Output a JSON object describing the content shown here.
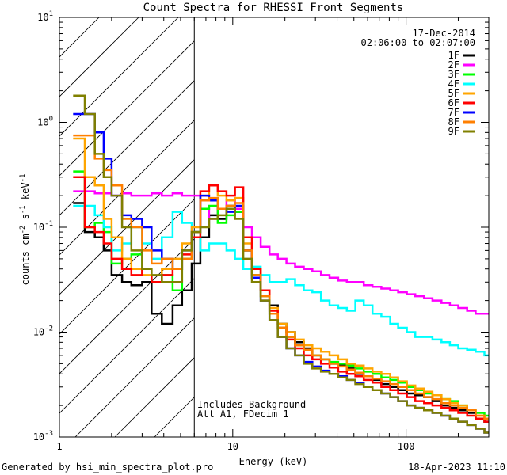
{
  "chart_data": {
    "type": "line",
    "title": "Count Spectra for RHESSI Front Segments",
    "xlabel": "Energy (keV)",
    "ylabel": "counts cm",
    "ylabel_sup1": "-2",
    "ylabel_mid": " s",
    "ylabel_sup2": "-1",
    "ylabel_end": " keV",
    "ylabel_sup3": "-1",
    "xscale": "log",
    "yscale": "log",
    "xlim": [
      1,
      300
    ],
    "ylim": [
      0.001,
      10
    ],
    "x_tick_labels": [
      {
        "value": 1,
        "label": "1"
      },
      {
        "value": 10,
        "label": "10"
      },
      {
        "value": 100,
        "label": "100"
      }
    ],
    "y_tick_labels": [
      {
        "value": 0.001,
        "base": "10",
        "exp": "-3"
      },
      {
        "value": 0.01,
        "base": "10",
        "exp": "-2"
      },
      {
        "value": 0.1,
        "base": "10",
        "exp": "-1"
      },
      {
        "value": 1,
        "base": "10",
        "exp": "0"
      },
      {
        "value": 10,
        "base": "10",
        "exp": "1"
      }
    ],
    "date": "17-Dec-2014",
    "time_range": "02:06:00 to 02:07:00",
    "shaded_region_upper_energy": 6,
    "annotations": [
      "Includes Background",
      "Att A1, FDecim 1"
    ],
    "series": [
      {
        "name": "1F",
        "color": "#000000",
        "x": [
          1.2,
          1.4,
          1.6,
          1.8,
          2.0,
          2.3,
          2.6,
          3.0,
          3.4,
          3.9,
          4.5,
          5.1,
          5.8,
          6.5,
          7.3,
          8.2,
          9.2,
          10.3,
          11.5,
          12.9,
          14.5,
          16.3,
          18.2,
          20.4,
          22.9,
          25.7,
          28.8,
          32.3,
          36.2,
          40.6,
          45.5,
          51,
          57,
          64,
          72,
          81,
          90,
          101,
          113,
          127,
          142,
          160,
          179,
          200,
          225,
          252,
          283
        ],
        "y": [
          0.17,
          0.09,
          0.08,
          0.06,
          0.035,
          0.03,
          0.028,
          0.03,
          0.015,
          0.012,
          0.018,
          0.025,
          0.045,
          0.08,
          0.13,
          0.12,
          0.16,
          0.14,
          0.06,
          0.035,
          0.025,
          0.018,
          0.012,
          0.01,
          0.008,
          0.007,
          0.006,
          0.0055,
          0.005,
          0.0048,
          0.0045,
          0.004,
          0.0038,
          0.0035,
          0.0032,
          0.003,
          0.0028,
          0.0026,
          0.0025,
          0.0024,
          0.0022,
          0.002,
          0.0019,
          0.0018,
          0.0017,
          0.0015,
          0.0014
        ]
      },
      {
        "name": "2F",
        "color": "#ff00ff",
        "x": [
          1.2,
          1.4,
          1.6,
          1.8,
          2.0,
          2.3,
          2.6,
          3.0,
          3.4,
          3.9,
          4.5,
          5.1,
          5.8,
          6.5,
          7.3,
          8.2,
          9.2,
          10.3,
          11.5,
          12.9,
          14.5,
          16.3,
          18.2,
          20.4,
          22.9,
          25.7,
          28.8,
          32.3,
          36.2,
          40.6,
          45.5,
          51,
          57,
          64,
          72,
          81,
          90,
          101,
          113,
          127,
          142,
          160,
          179,
          200,
          225,
          252,
          283
        ],
        "y": [
          0.22,
          0.22,
          0.21,
          0.21,
          0.2,
          0.21,
          0.2,
          0.2,
          0.21,
          0.2,
          0.21,
          0.2,
          0.2,
          0.15,
          0.12,
          0.15,
          0.18,
          0.15,
          0.1,
          0.08,
          0.065,
          0.055,
          0.05,
          0.045,
          0.042,
          0.04,
          0.038,
          0.035,
          0.033,
          0.031,
          0.03,
          0.03,
          0.028,
          0.027,
          0.026,
          0.025,
          0.024,
          0.023,
          0.022,
          0.021,
          0.02,
          0.019,
          0.018,
          0.017,
          0.016,
          0.015,
          0.015
        ]
      },
      {
        "name": "3F",
        "color": "#00ff00",
        "x": [
          1.2,
          1.4,
          1.6,
          1.8,
          2.0,
          2.3,
          2.6,
          3.0,
          3.4,
          3.9,
          4.5,
          5.1,
          5.8,
          6.5,
          7.3,
          8.2,
          9.2,
          10.3,
          11.5,
          12.9,
          14.5,
          16.3,
          18.2,
          20.4,
          22.9,
          25.7,
          28.8,
          32.3,
          36.2,
          40.6,
          45.5,
          51,
          57,
          64,
          72,
          81,
          90,
          101,
          113,
          127,
          142,
          160,
          179,
          200,
          225,
          252,
          283
        ],
        "y": [
          0.34,
          0.1,
          0.11,
          0.09,
          0.045,
          0.05,
          0.055,
          0.04,
          0.03,
          0.035,
          0.025,
          0.05,
          0.09,
          0.15,
          0.16,
          0.11,
          0.13,
          0.14,
          0.06,
          0.035,
          0.022,
          0.015,
          0.011,
          0.009,
          0.0075,
          0.0068,
          0.006,
          0.0055,
          0.0052,
          0.005,
          0.0048,
          0.0045,
          0.0042,
          0.004,
          0.0037,
          0.0035,
          0.0033,
          0.003,
          0.0028,
          0.0026,
          0.0025,
          0.0023,
          0.0022,
          0.002,
          0.0018,
          0.0017,
          0.0016
        ]
      },
      {
        "name": "4F",
        "color": "#00ffff",
        "x": [
          1.2,
          1.4,
          1.6,
          1.8,
          2.0,
          2.3,
          2.6,
          3.0,
          3.4,
          3.9,
          4.5,
          5.1,
          5.8,
          6.5,
          7.3,
          8.2,
          9.2,
          10.3,
          11.5,
          12.9,
          14.5,
          16.3,
          18.2,
          20.4,
          22.9,
          25.7,
          28.8,
          32.3,
          36.2,
          40.6,
          45.5,
          51,
          57,
          64,
          72,
          81,
          90,
          101,
          113,
          127,
          142,
          160,
          179,
          200,
          225,
          252,
          283
        ],
        "y": [
          0.16,
          0.16,
          0.13,
          0.1,
          0.06,
          0.07,
          0.1,
          0.07,
          0.05,
          0.08,
          0.14,
          0.11,
          0.09,
          0.06,
          0.07,
          0.07,
          0.06,
          0.05,
          0.04,
          0.042,
          0.035,
          0.03,
          0.03,
          0.032,
          0.028,
          0.025,
          0.024,
          0.02,
          0.018,
          0.017,
          0.016,
          0.02,
          0.018,
          0.015,
          0.014,
          0.012,
          0.011,
          0.01,
          0.009,
          0.009,
          0.0085,
          0.008,
          0.0075,
          0.007,
          0.0068,
          0.0065,
          0.006
        ]
      },
      {
        "name": "5F",
        "color": "#ffa500",
        "x": [
          1.2,
          1.4,
          1.6,
          1.8,
          2.0,
          2.3,
          2.6,
          3.0,
          3.4,
          3.9,
          4.5,
          5.1,
          5.8,
          6.5,
          7.3,
          8.2,
          9.2,
          10.3,
          11.5,
          12.9,
          14.5,
          16.3,
          18.2,
          20.4,
          22.9,
          25.7,
          28.8,
          32.3,
          36.2,
          40.6,
          45.5,
          51,
          57,
          64,
          72,
          81,
          90,
          101,
          113,
          127,
          142,
          160,
          179,
          200,
          225,
          252,
          283
        ],
        "y": [
          0.7,
          0.3,
          0.25,
          0.12,
          0.08,
          0.05,
          0.04,
          0.035,
          0.03,
          0.04,
          0.05,
          0.07,
          0.1,
          0.2,
          0.25,
          0.2,
          0.18,
          0.19,
          0.07,
          0.04,
          0.025,
          0.017,
          0.012,
          0.01,
          0.0085,
          0.0075,
          0.007,
          0.0065,
          0.006,
          0.0055,
          0.005,
          0.0048,
          0.0045,
          0.0042,
          0.004,
          0.0037,
          0.0034,
          0.0031,
          0.0029,
          0.0027,
          0.0025,
          0.0023,
          0.0021,
          0.002,
          0.0018,
          0.0016,
          0.0015
        ]
      },
      {
        "name": "6F",
        "color": "#ff0000",
        "x": [
          1.2,
          1.4,
          1.6,
          1.8,
          2.0,
          2.3,
          2.6,
          3.0,
          3.4,
          3.9,
          4.5,
          5.1,
          5.8,
          6.5,
          7.3,
          8.2,
          9.2,
          10.3,
          11.5,
          12.9,
          14.5,
          16.3,
          18.2,
          20.4,
          22.9,
          25.7,
          28.8,
          32.3,
          36.2,
          40.6,
          45.5,
          51,
          57,
          64,
          72,
          81,
          90,
          101,
          113,
          127,
          142,
          160,
          179,
          200,
          225,
          252,
          283
        ],
        "y": [
          0.3,
          0.1,
          0.09,
          0.07,
          0.05,
          0.04,
          0.035,
          0.04,
          0.03,
          0.035,
          0.04,
          0.055,
          0.08,
          0.22,
          0.25,
          0.22,
          0.2,
          0.24,
          0.08,
          0.04,
          0.025,
          0.016,
          0.011,
          0.0085,
          0.007,
          0.006,
          0.0055,
          0.005,
          0.0046,
          0.0042,
          0.004,
          0.0038,
          0.0035,
          0.0033,
          0.003,
          0.0028,
          0.0026,
          0.0024,
          0.0022,
          0.0021,
          0.002,
          0.0019,
          0.0018,
          0.0017,
          0.0016,
          0.0015,
          0.0014
        ]
      },
      {
        "name": "7F",
        "color": "#0000ff",
        "x": [
          1.2,
          1.4,
          1.6,
          1.8,
          2.0,
          2.3,
          2.6,
          3.0,
          3.4,
          3.9,
          4.5,
          5.1,
          5.8,
          6.5,
          7.3,
          8.2,
          9.2,
          10.3,
          11.5,
          12.9,
          14.5,
          16.3,
          18.2,
          20.4,
          22.9,
          25.7,
          28.8,
          32.3,
          36.2,
          40.6,
          45.5,
          51,
          57,
          64,
          72,
          81,
          90,
          101,
          113,
          127,
          142,
          160,
          179,
          200,
          225,
          252,
          283
        ],
        "y": [
          1.2,
          1.2,
          0.8,
          0.45,
          0.2,
          0.13,
          0.12,
          0.1,
          0.06,
          0.05,
          0.04,
          0.06,
          0.09,
          0.2,
          0.18,
          0.15,
          0.14,
          0.16,
          0.06,
          0.033,
          0.02,
          0.013,
          0.009,
          0.007,
          0.006,
          0.0052,
          0.0047,
          0.0043,
          0.004,
          0.0038,
          0.0035,
          0.0033,
          0.003,
          0.0028,
          0.0026,
          0.0024,
          0.0022,
          0.002,
          0.0019,
          0.0018,
          0.0017,
          0.0016,
          0.0015,
          0.0014,
          0.0013,
          0.0012,
          0.0011
        ]
      },
      {
        "name": "8F",
        "color": "#ff7f00",
        "x": [
          1.2,
          1.4,
          1.6,
          1.8,
          2.0,
          2.3,
          2.6,
          3.0,
          3.4,
          3.9,
          4.5,
          5.1,
          5.8,
          6.5,
          7.3,
          8.2,
          9.2,
          10.3,
          11.5,
          12.9,
          14.5,
          16.3,
          18.2,
          20.4,
          22.9,
          25.7,
          28.8,
          32.3,
          36.2,
          40.6,
          45.5,
          51,
          57,
          64,
          72,
          81,
          90,
          101,
          113,
          127,
          142,
          160,
          179,
          200,
          225,
          252,
          283
        ],
        "y": [
          0.75,
          0.75,
          0.45,
          0.35,
          0.25,
          0.12,
          0.1,
          0.06,
          0.045,
          0.05,
          0.04,
          0.05,
          0.09,
          0.18,
          0.19,
          0.15,
          0.16,
          0.17,
          0.06,
          0.035,
          0.022,
          0.015,
          0.011,
          0.009,
          0.0075,
          0.0068,
          0.006,
          0.0055,
          0.005,
          0.0047,
          0.0044,
          0.0041,
          0.0038,
          0.0036,
          0.0034,
          0.0032,
          0.003,
          0.0028,
          0.0026,
          0.0024,
          0.0023,
          0.0021,
          0.002,
          0.0019,
          0.0018,
          0.0016,
          0.0015
        ]
      },
      {
        "name": "9F",
        "color": "#808000",
        "x": [
          1.2,
          1.4,
          1.6,
          1.8,
          2.0,
          2.3,
          2.6,
          3.0,
          3.4,
          3.9,
          4.5,
          5.1,
          5.8,
          6.5,
          7.3,
          8.2,
          9.2,
          10.3,
          11.5,
          12.9,
          14.5,
          16.3,
          18.2,
          20.4,
          22.9,
          25.7,
          28.8,
          32.3,
          36.2,
          40.6,
          45.5,
          51,
          57,
          64,
          72,
          81,
          90,
          101,
          113,
          127,
          142,
          160,
          179,
          200,
          225,
          252,
          283
        ],
        "y": [
          1.8,
          1.2,
          0.5,
          0.3,
          0.2,
          0.1,
          0.06,
          0.04,
          0.035,
          0.03,
          0.03,
          0.06,
          0.09,
          0.1,
          0.12,
          0.13,
          0.15,
          0.12,
          0.05,
          0.03,
          0.02,
          0.013,
          0.009,
          0.007,
          0.006,
          0.005,
          0.0045,
          0.0042,
          0.004,
          0.0037,
          0.0035,
          0.0032,
          0.003,
          0.0028,
          0.0026,
          0.0024,
          0.0022,
          0.002,
          0.0019,
          0.0018,
          0.0017,
          0.0016,
          0.0015,
          0.0014,
          0.0013,
          0.0012,
          0.0011
        ]
      }
    ]
  },
  "footer": {
    "left": "Generated by hsi_min_spectra_plot.pro",
    "right": "18-Apr-2023 11:10"
  }
}
